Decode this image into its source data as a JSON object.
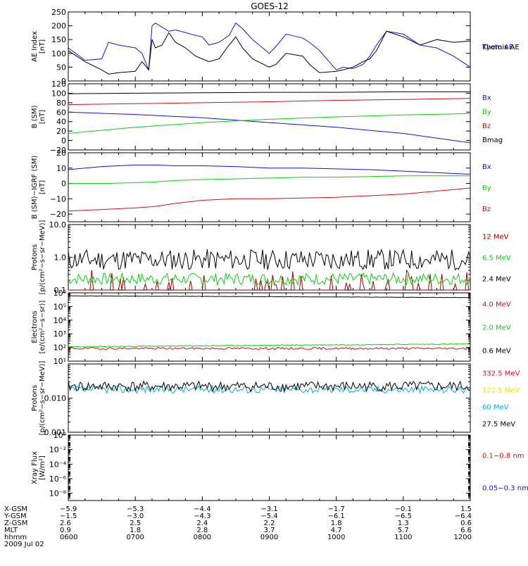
{
  "title": "GOES-12",
  "colors": {
    "black": "#000000",
    "blue": "#1414d2",
    "red": "#c81414",
    "green": "#14c814",
    "cyan": "#0aaadc",
    "yellow": "#e6e600",
    "darkred": "#a00000"
  },
  "chart_data": [
    {
      "id": "ae",
      "type": "line",
      "scale": "linear",
      "ylabel": [
        "AE Index",
        "[nT]"
      ],
      "ylim": [
        0,
        250
      ],
      "ticks": [
        0,
        50,
        100,
        150,
        200,
        250
      ],
      "tick_labels": [
        "0",
        "50",
        "100",
        "150",
        "200",
        "250"
      ],
      "x": [
        6.0,
        6.25,
        6.5,
        6.6,
        6.75,
        7.0,
        7.1,
        7.2,
        7.25,
        7.3,
        7.4,
        7.5,
        7.6,
        7.75,
        7.9,
        8.0,
        8.1,
        8.25,
        8.4,
        8.5,
        8.6,
        8.75,
        9.0,
        9.1,
        9.25,
        9.5,
        9.6,
        9.75,
        10.0,
        10.1,
        10.25,
        10.4,
        10.5,
        10.6,
        10.75,
        11.0,
        11.25,
        11.5,
        11.75,
        12.0
      ],
      "series": [
        {
          "name": "Kyoto AE",
          "color": "#1414d2",
          "label_dy": 0,
          "values": [
            120,
            75,
            80,
            140,
            130,
            120,
            100,
            40,
            200,
            210,
            195,
            180,
            185,
            175,
            165,
            160,
            130,
            140,
            165,
            210,
            190,
            150,
            100,
            125,
            170,
            155,
            140,
            110,
            40,
            50,
            45,
            60,
            90,
            130,
            180,
            170,
            130,
            120,
            90,
            50
          ]
        },
        {
          "name": "Themis AE",
          "color": "#000000",
          "label_dy": 0,
          "values": [
            110,
            70,
            40,
            25,
            30,
            35,
            70,
            40,
            150,
            120,
            130,
            175,
            140,
            120,
            90,
            80,
            70,
            80,
            130,
            160,
            120,
            80,
            50,
            60,
            100,
            90,
            60,
            30,
            35,
            40,
            50,
            70,
            80,
            110,
            180,
            160,
            130,
            150,
            140,
            145
          ]
        }
      ]
    },
    {
      "id": "bsm",
      "type": "line",
      "scale": "linear",
      "ylabel": [
        "B (SM)",
        "[nT]"
      ],
      "ylim": [
        -20,
        120
      ],
      "ticks": [
        -20,
        0,
        20,
        40,
        60,
        80,
        100,
        120
      ],
      "tick_labels": [
        "−20",
        "0",
        "20",
        "40",
        "60",
        "80",
        "100",
        "120"
      ],
      "x": [
        6.0,
        7.0,
        8.0,
        9.0,
        10.0,
        11.0,
        12.0
      ],
      "series": [
        {
          "name": "Bx",
          "color": "#1414d2",
          "label_dy": -28,
          "values": [
            60,
            55,
            48,
            38,
            28,
            15,
            -5
          ]
        },
        {
          "name": "By",
          "color": "#14c814",
          "label_dy": -8,
          "values": [
            15,
            28,
            38,
            45,
            50,
            54,
            57
          ]
        },
        {
          "name": "Bz",
          "color": "#c81414",
          "label_dy": 12,
          "values": [
            76,
            78,
            80,
            82,
            85,
            87,
            89
          ]
        },
        {
          "name": "Bmag",
          "color": "#000000",
          "label_dy": 32,
          "values": [
            99,
            100,
            101,
            102,
            102,
            103,
            103
          ]
        }
      ]
    },
    {
      "id": "bigrf",
      "type": "line",
      "scale": "linear",
      "ylabel": [
        "B (SM)−IGRF (SM)",
        "[nT]"
      ],
      "ylim": [
        -25,
        20
      ],
      "ticks": [
        -20,
        -10,
        0,
        10,
        20
      ],
      "tick_labels": [
        "−20",
        "−10",
        "0",
        "10",
        "20"
      ],
      "x": [
        6.0,
        6.5,
        7.0,
        7.3,
        7.6,
        8.0,
        8.5,
        9.0,
        9.5,
        10.0,
        10.5,
        11.0,
        11.5,
        12.0
      ],
      "series": [
        {
          "name": "Bx",
          "color": "#1414d2",
          "label_dy": -30,
          "values": [
            9,
            11,
            12,
            12,
            11.5,
            11.5,
            11,
            10,
            10,
            9.5,
            9,
            8,
            7,
            6
          ]
        },
        {
          "name": "By",
          "color": "#14c814",
          "label_dy": 0,
          "values": [
            0,
            0,
            0.5,
            1,
            2,
            2.5,
            3,
            3.5,
            4,
            4,
            4.5,
            5,
            5,
            5
          ]
        },
        {
          "name": "Bz",
          "color": "#c81414",
          "label_dy": 30,
          "values": [
            -18,
            -17,
            -16,
            -15,
            -13,
            -11,
            -10,
            -10,
            -9.5,
            -9,
            -8,
            -7,
            -5,
            -3
          ]
        }
      ]
    },
    {
      "id": "protons_low",
      "type": "line",
      "scale": "log",
      "ylabel": [
        "Protons",
        "[p/(cm²−s−sr−MeV)]"
      ],
      "ylim": [
        0.1,
        10
      ],
      "ticks": [
        0.1,
        1,
        10
      ],
      "tick_labels": [
        "0.1",
        "1.0",
        "10.0"
      ],
      "series": [
        {
          "name": "12 MeV",
          "color": "#a00000",
          "label_dy": -30,
          "noise": "sparse",
          "level": 0.1,
          "amp": 0.25,
          "seed": 3
        },
        {
          "name": "6.5 MeV",
          "color": "#14c814",
          "label_dy": 0,
          "noise": "clip",
          "level": 0.22,
          "amp": 0.18,
          "seed": 7
        },
        {
          "name": "2.4 MeV",
          "color": "#000000",
          "label_dy": 30,
          "noise": "jag",
          "level": 0.85,
          "amp": 0.32,
          "seed": 11
        }
      ]
    },
    {
      "id": "electrons",
      "type": "line",
      "scale": "log",
      "ylabel": [
        "Electrons",
        "[e/(cm²−s−sr)]"
      ],
      "ylim": [
        10,
        1000000
      ],
      "ticks": [
        10,
        100,
        1000,
        10000,
        100000,
        1000000
      ],
      "tick_labels": [
        "10¹",
        "10²",
        "10³",
        "10⁴",
        "10⁵",
        "10⁶"
      ],
      "series": [
        {
          "name": "4.0 MeV",
          "color": "#c81414",
          "label_dy": -33,
          "noise": "jag",
          "level": 85,
          "amp": 0.08,
          "seed": 19
        },
        {
          "name": "2.0 MeV",
          "color": "#14c814",
          "label_dy": 0,
          "noise": "trend",
          "level": 110,
          "level_end": 180,
          "amp": 0.03,
          "seed": 23
        },
        {
          "name": "0.6 MeV",
          "color": "#000000",
          "label_dy": 33,
          "noise": "trend",
          "level": 600000,
          "level_end": 450000,
          "amp": 0.01,
          "seed": 29
        }
      ]
    },
    {
      "id": "protons_high",
      "type": "line",
      "scale": "log",
      "ylabel": [
        "Protons",
        "[p/(cm²−s−sr−MeV)]"
      ],
      "ylim": [
        0.001,
        0.1
      ],
      "ticks": [
        0.001,
        0.01,
        0.1
      ],
      "tick_labels": [
        "0.001",
        "0.010",
        ""
      ],
      "series": [
        {
          "name": "332.5 MeV",
          "color": "#c81414",
          "label_dy": -36,
          "noise": "none",
          "level": 0.02,
          "amp": 0,
          "seed": 1
        },
        {
          "name": "122.5 MeV",
          "color": "#e6e600",
          "label_dy": -12,
          "noise": "none",
          "level": 0.02,
          "amp": 0,
          "seed": 2
        },
        {
          "name": "60 MeV",
          "color": "#0aaadc",
          "label_dy": 12,
          "noise": "jag",
          "level": 0.018,
          "amp": 0.11,
          "seed": 37
        },
        {
          "name": "27.5 MeV",
          "color": "#000000",
          "label_dy": 36,
          "noise": "jag",
          "level": 0.022,
          "amp": 0.15,
          "seed": 41
        }
      ]
    },
    {
      "id": "xray",
      "type": "line",
      "scale": "log",
      "ylabel": [
        "Xray Flux",
        "[W/m²]"
      ],
      "ylim": [
        1e-09,
        1
      ],
      "ticks": [
        1e-08,
        1e-06,
        0.0001,
        0.01,
        1
      ],
      "tick_labels": [
        "10⁻⁸",
        "10⁻⁶",
        "10⁻⁴",
        "10⁻²",
        "10⁰"
      ],
      "series": [
        {
          "name": "0.1−0.8 nm",
          "color": "#c81414",
          "label_dy": -18,
          "noise": "none",
          "level": 0,
          "amp": 0,
          "seed": 0
        },
        {
          "name": "0.05−0.3 nm",
          "color": "#1414d2",
          "label_dy": 28,
          "noise": "none",
          "level": 0,
          "amp": 0,
          "seed": 0
        }
      ]
    }
  ],
  "x_axis": {
    "row_labels": [
      "X-GSM",
      "Y-GSM",
      "Z-GSM",
      "MLT",
      "hhmm"
    ],
    "columns": [
      {
        "t": 6,
        "values": [
          "−5.9",
          "−1.5",
          "2.6",
          "0.9",
          "0600"
        ]
      },
      {
        "t": 7,
        "values": [
          "−5.3",
          "−3.0",
          "2.5",
          "1.8",
          "0700"
        ]
      },
      {
        "t": 8,
        "values": [
          "−4.4",
          "−4.3",
          "2.4",
          "2.8",
          "0800"
        ]
      },
      {
        "t": 9,
        "values": [
          "−3.1",
          "−5.4",
          "2.2",
          "3.7",
          "0900"
        ]
      },
      {
        "t": 10,
        "values": [
          "−1.7",
          "−6.1",
          "1.8",
          "4.7",
          "1000"
        ]
      },
      {
        "t": 11,
        "values": [
          "−0.1",
          "−6.5",
          "1.3",
          "5.7",
          "1100"
        ]
      },
      {
        "t": 12,
        "values": [
          "1.5",
          "−6.4",
          "0.6",
          "6.6",
          "1200"
        ]
      }
    ],
    "date": "2009 Jul 02"
  }
}
